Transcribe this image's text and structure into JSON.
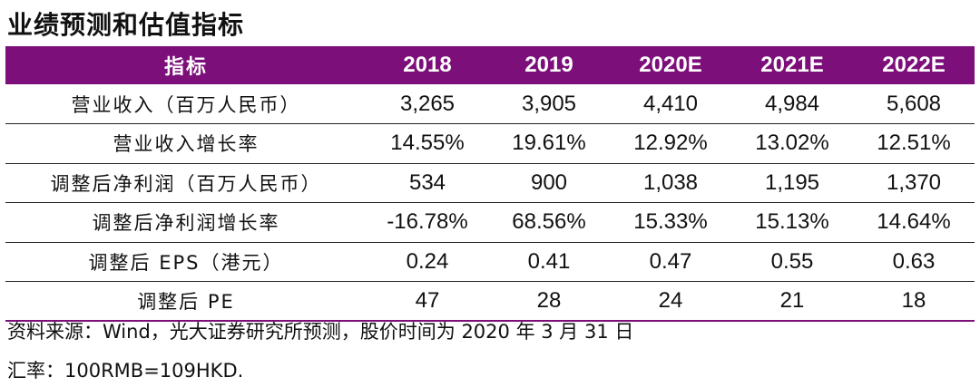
{
  "title": "业绩预测和估值指标",
  "table": {
    "headers": [
      "指标",
      "2018",
      "2019",
      "2020E",
      "2021E",
      "2022E"
    ],
    "rows": [
      {
        "metric": "营业收入（百万人民币）",
        "values": [
          "3,265",
          "3,905",
          "4,410",
          "4,984",
          "5,608"
        ]
      },
      {
        "metric": "营业收入增长率",
        "values": [
          "14.55%",
          "19.61%",
          "12.92%",
          "13.02%",
          "12.51%"
        ]
      },
      {
        "metric": "调整后净利润（百万人民币）",
        "values": [
          "534",
          "900",
          "1,038",
          "1,195",
          "1,370"
        ]
      },
      {
        "metric": "调整后净利润增长率",
        "values": [
          "-16.78%",
          "68.56%",
          "15.33%",
          "15.13%",
          "14.64%"
        ]
      },
      {
        "metric": "调整后 EPS（港元）",
        "values": [
          "0.24",
          "0.41",
          "0.47",
          "0.55",
          "0.63"
        ]
      },
      {
        "metric": "调整后 PE",
        "values": [
          "47",
          "28",
          "24",
          "21",
          "18"
        ]
      }
    ]
  },
  "footnotes": {
    "source": "资料来源：Wind，光大证券研究所预测，股价时间为 2020 年 3 月 31 日",
    "exchange_rate": "汇率：100RMB=109HKD."
  },
  "colors": {
    "header_bg": "#7c0f7a",
    "header_text": "#ffffff"
  }
}
